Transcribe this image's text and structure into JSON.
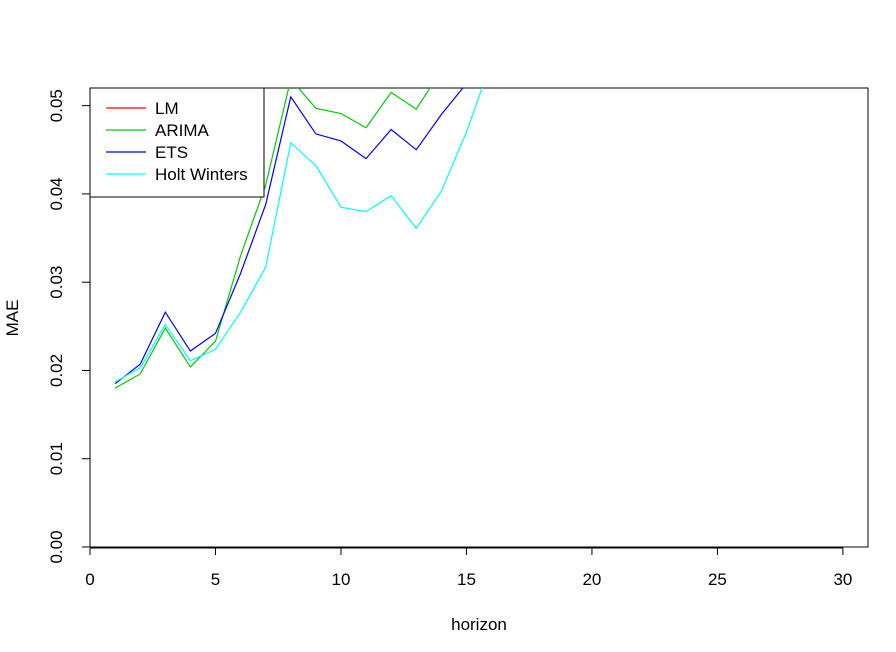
{
  "chart_data": {
    "type": "line",
    "title": "",
    "xlabel": "horizon",
    "ylabel": "MAE",
    "xlim": [
      0,
      31
    ],
    "ylim": [
      0,
      0.052
    ],
    "x_ticks": [
      0,
      5,
      10,
      15,
      20,
      25,
      30
    ],
    "x_tick_labels": [
      "0",
      "5",
      "10",
      "15",
      "20",
      "25",
      "30"
    ],
    "y_ticks": [
      0.0,
      0.01,
      0.02,
      0.03,
      0.04,
      0.05
    ],
    "y_tick_labels": [
      "0.00",
      "0.01",
      "0.02",
      "0.03",
      "0.04",
      "0.05"
    ],
    "grid": false,
    "legend_position": "top-left",
    "x": [
      1,
      2,
      3,
      4,
      5,
      6,
      7,
      8,
      9,
      10,
      11,
      12,
      13,
      14,
      15,
      16
    ],
    "series": [
      {
        "name": "LM",
        "color": "#ff0000",
        "values": [
          0.0435,
          0.0448,
          0.0506,
          0.0495,
          0.0506,
          0.056,
          null,
          null,
          null,
          null,
          null,
          null,
          null,
          null,
          null,
          null
        ]
      },
      {
        "name": "ARIMA",
        "color": "#00cd00",
        "values": [
          0.018,
          0.0196,
          0.0248,
          0.0204,
          0.0233,
          0.033,
          0.041,
          0.053,
          0.0497,
          0.0491,
          0.0475,
          0.0515,
          0.0496,
          0.054,
          null,
          null
        ]
      },
      {
        "name": "ETS",
        "color": "#0000ff",
        "values": [
          0.0185,
          0.0207,
          0.0266,
          0.0222,
          0.0242,
          0.031,
          0.0388,
          0.051,
          0.0468,
          0.046,
          0.044,
          0.0473,
          0.045,
          0.049,
          0.0525,
          null
        ]
      },
      {
        "name": "Holt Winters",
        "color": "#00ffff",
        "values": [
          0.0187,
          0.0203,
          0.0252,
          0.0211,
          0.0224,
          0.0266,
          0.0317,
          0.0458,
          0.0432,
          0.0385,
          0.038,
          0.0398,
          0.0361,
          0.0403,
          0.047,
          0.055
        ]
      }
    ]
  }
}
